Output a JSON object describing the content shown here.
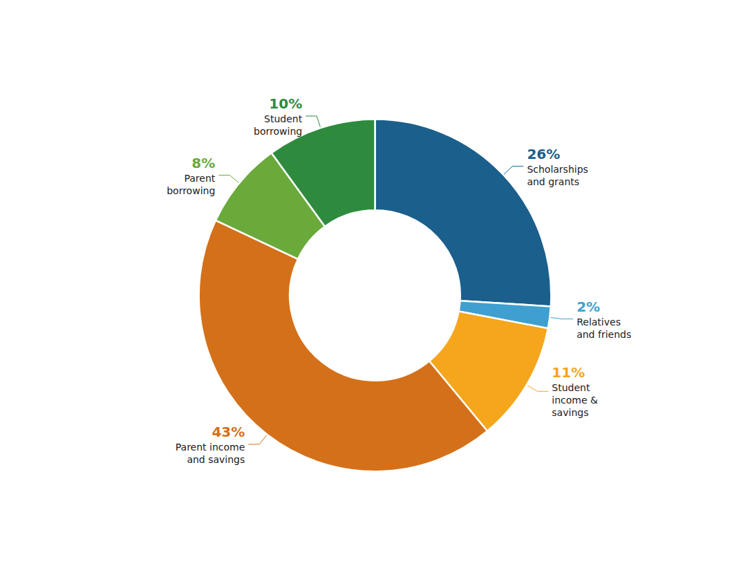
{
  "chart_data": {
    "type": "pie",
    "categories": [
      "Scholarships\nand grants",
      "Relatives\nand friends",
      "Student\nincome &\nsavings",
      "Parent income\nand savings",
      "Parent\nborrowing",
      "Student\nborrowing"
    ],
    "values": [
      26,
      2,
      11,
      43,
      8,
      10
    ],
    "value_labels": [
      "26%",
      "2%",
      "11%",
      "43%",
      "8%",
      "10%"
    ],
    "colors": [
      "#1b5f8c",
      "#3fa0d0",
      "#f5a61d",
      "#d4701a",
      "#6aaa3a",
      "#2e8b3e"
    ],
    "data_labels": true
  }
}
